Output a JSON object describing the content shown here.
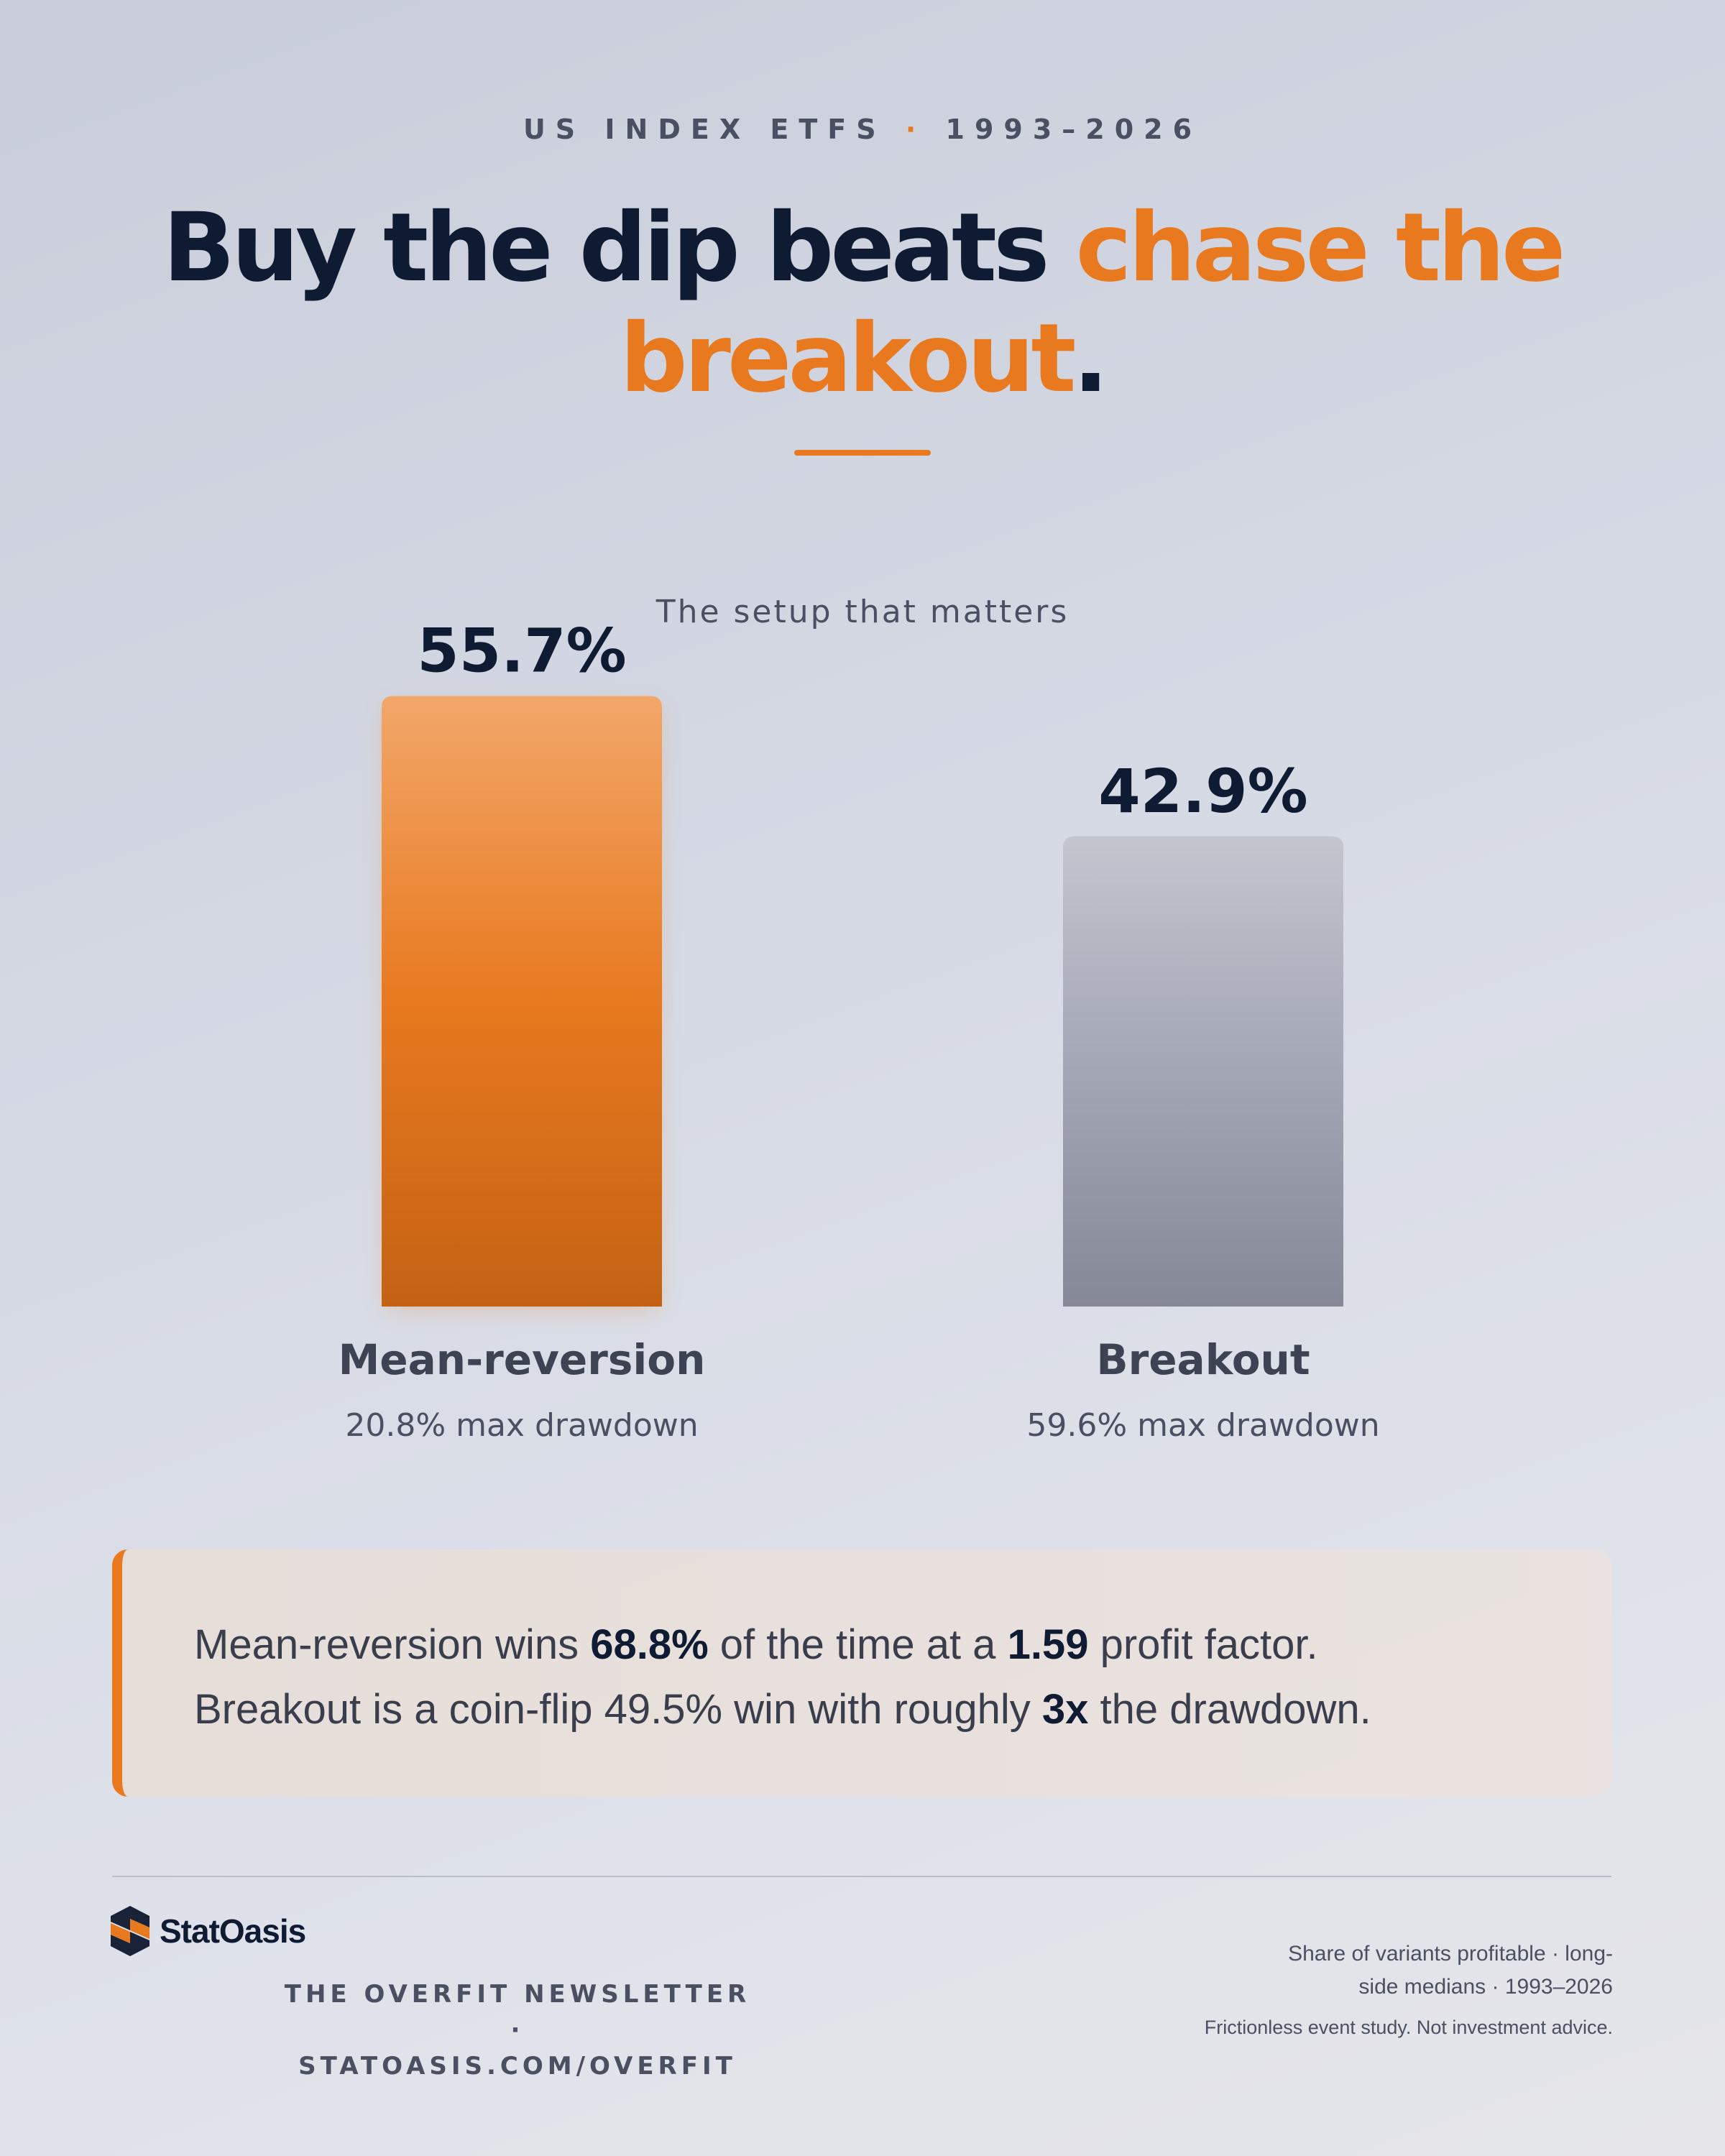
{
  "header": {
    "eyebrow_left": "US INDEX ETFS",
    "eyebrow_sep": "·",
    "eyebrow_right": "1993–2026",
    "headline_main": "Buy the dip beats ",
    "headline_accent_1": "chase the",
    "headline_accent_2": "breakout",
    "headline_end": "."
  },
  "chart_data": {
    "type": "bar",
    "title": "The setup that matters",
    "categories": [
      "Mean-reversion",
      "Breakout"
    ],
    "values": [
      55.7,
      42.9
    ],
    "value_labels": [
      "55.7%",
      "42.9%"
    ],
    "sublabels": [
      "20.8% max drawdown",
      "59.6% max drawdown"
    ],
    "colors": [
      "#e8791f",
      "#9a9dab"
    ],
    "xlabel": "",
    "ylabel": "",
    "grid": false
  },
  "callout": {
    "line1_a": "Mean-reversion wins ",
    "line1_b": "68.8%",
    "line1_c": " of the time at a ",
    "line1_d": "1.59",
    "line1_e": " profit factor.",
    "line2_a": "Breakout is a coin-flip 49.5% win with roughly ",
    "line2_b": "3x",
    "line2_c": " the drawdown."
  },
  "footer": {
    "brand": "StatOasis",
    "newsletter_line1": "THE OVERFIT NEWSLETTER ·",
    "newsletter_line2": "STATOASIS.COM/OVERFIT",
    "note_line1": "Share of variants profitable · long-",
    "note_line2": "side medians · 1993–2026",
    "disclaimer": "Frictionless event study. Not investment advice."
  },
  "colors": {
    "accent": "#e8791f",
    "navy": "#0f1b33",
    "muted": "#4a5062"
  }
}
